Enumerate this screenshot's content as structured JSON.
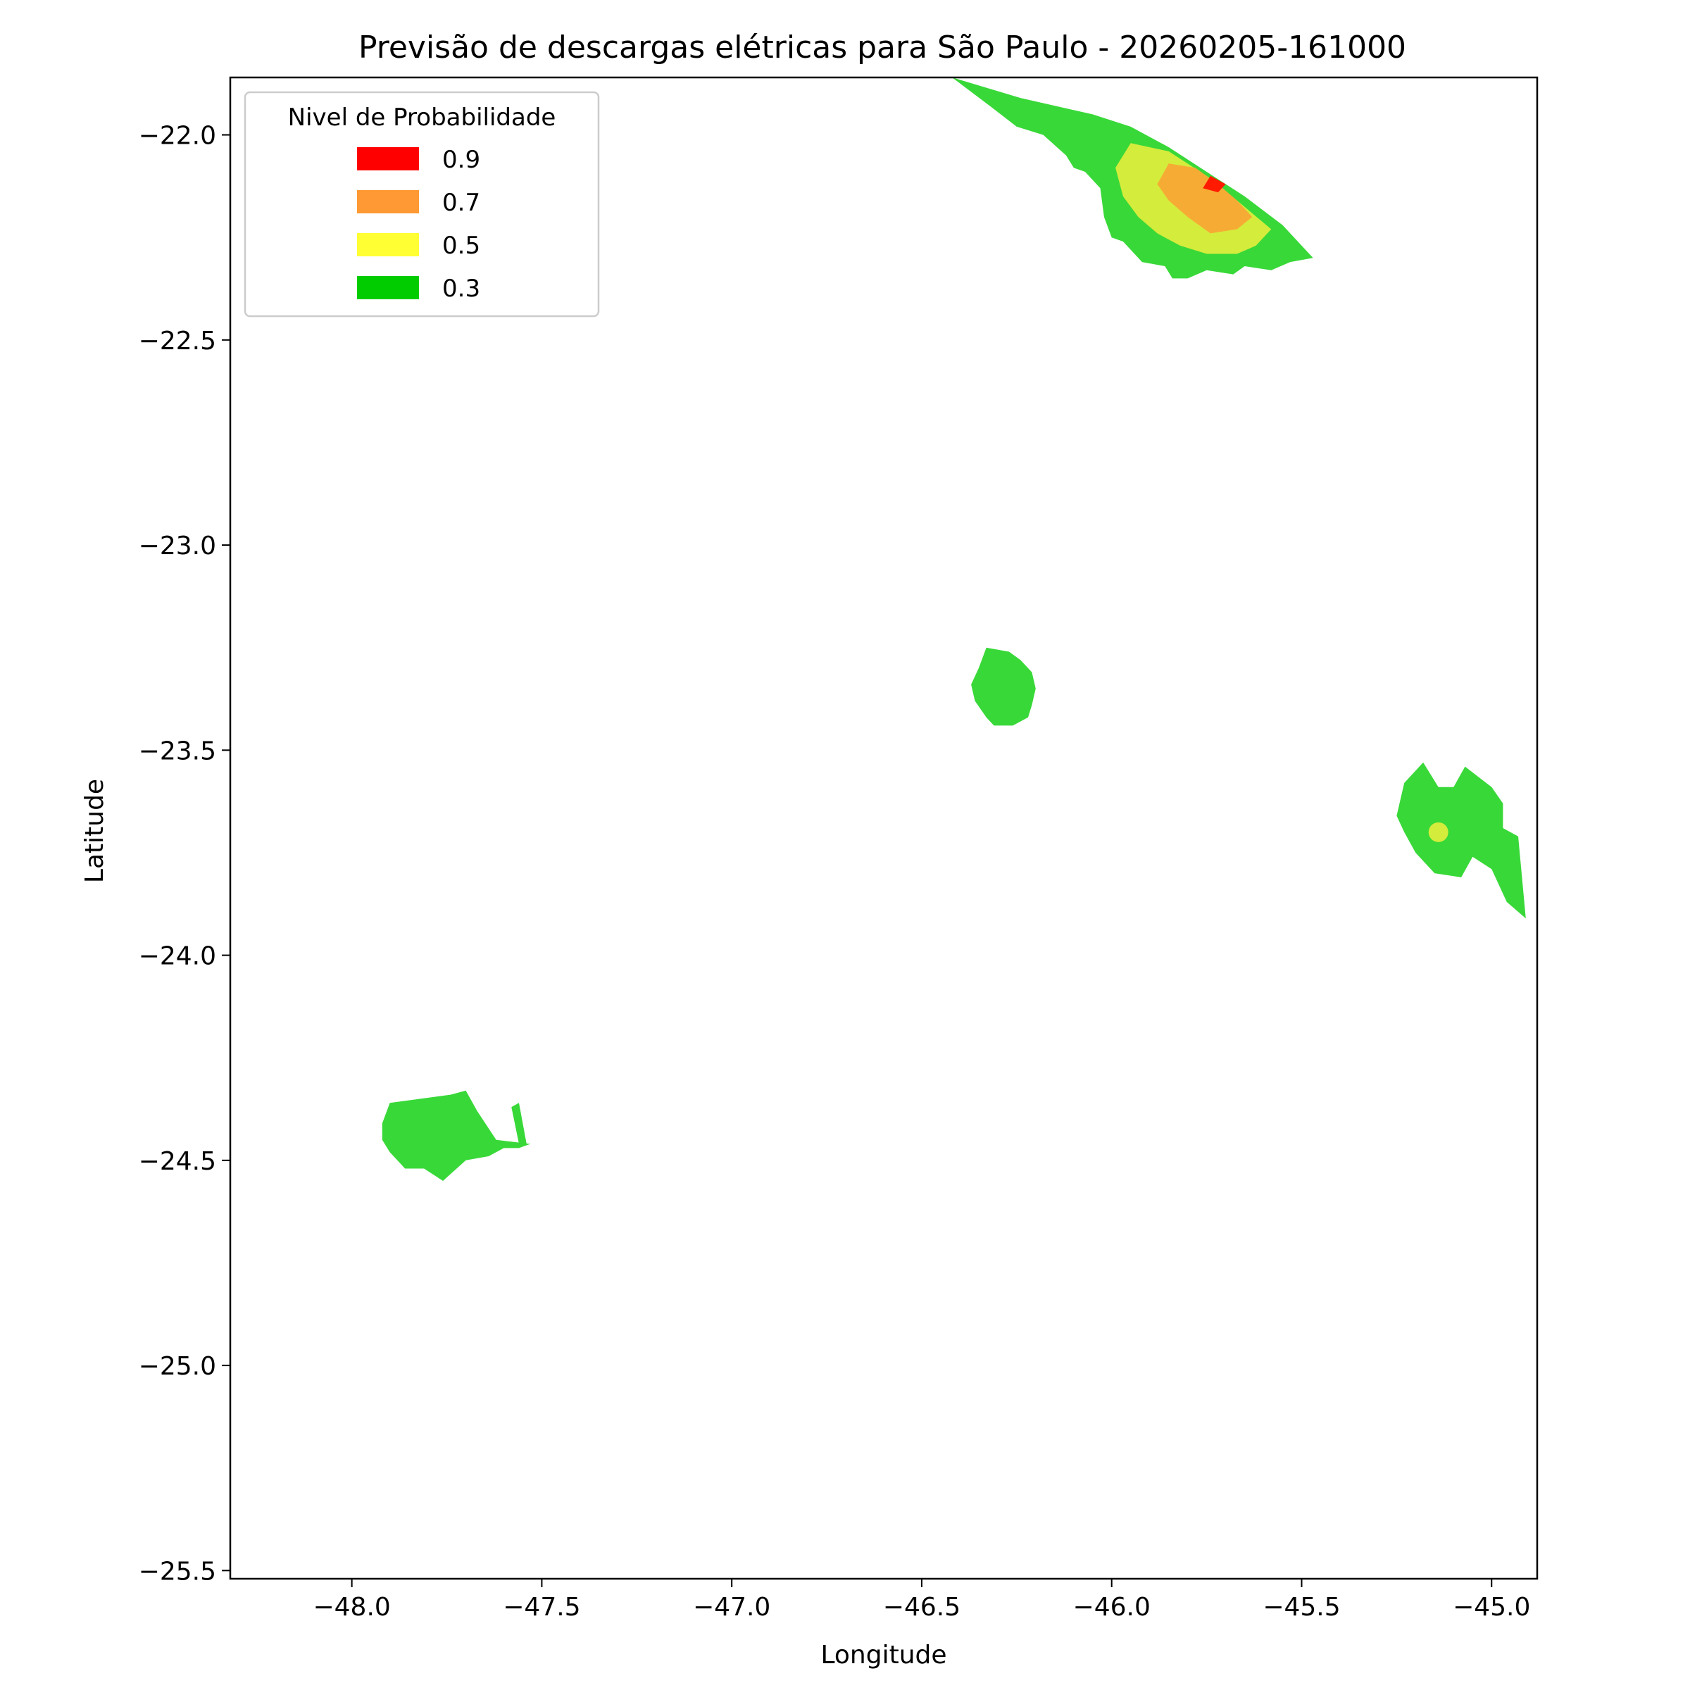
{
  "chart_data": {
    "type": "contour",
    "title": "Previsão de descargas elétricas para São Paulo - 20260205-161000",
    "xlabel": "Longitude",
    "ylabel": "Latitude",
    "xlim": [
      -48.32,
      -44.88
    ],
    "ylim": [
      -25.52,
      -21.86
    ],
    "xticks": [
      -48.0,
      -47.5,
      -47.0,
      -46.5,
      -46.0,
      -45.5,
      -45.0
    ],
    "xtick_labels": [
      "−48.0",
      "−47.5",
      "−47.0",
      "−46.5",
      "−46.0",
      "−45.5",
      "−45.0"
    ],
    "yticks": [
      -22.0,
      -22.5,
      -23.0,
      -23.5,
      -24.0,
      -24.5,
      -25.0,
      -25.5
    ],
    "ytick_labels": [
      "−22.0",
      "−22.5",
      "−23.0",
      "−23.5",
      "−24.0",
      "−24.5",
      "−25.0",
      "−25.5"
    ],
    "grid": false,
    "legend": {
      "title": "Nivel de Probabilidade",
      "placement": "top-left",
      "entries": [
        {
          "label": "0.9",
          "color": "#ff0000"
        },
        {
          "label": "0.7",
          "color": "#ff9933"
        },
        {
          "label": "0.5",
          "color": "#ffff33"
        },
        {
          "label": "0.3",
          "color": "#00cc00"
        }
      ]
    },
    "series": [
      {
        "level": 0.3,
        "color": "#38d838",
        "regions": [
          [
            [
              -46.42,
              -21.86
            ],
            [
              -46.24,
              -21.91
            ],
            [
              -46.05,
              -21.95
            ],
            [
              -45.95,
              -21.98
            ],
            [
              -45.85,
              -22.03
            ],
            [
              -45.75,
              -22.09
            ],
            [
              -45.65,
              -22.15
            ],
            [
              -45.55,
              -22.22
            ],
            [
              -45.47,
              -22.3
            ],
            [
              -45.53,
              -22.31
            ],
            [
              -45.58,
              -22.33
            ],
            [
              -45.65,
              -22.32
            ],
            [
              -45.68,
              -22.34
            ],
            [
              -45.75,
              -22.33
            ],
            [
              -45.8,
              -22.35
            ],
            [
              -45.84,
              -22.35
            ],
            [
              -45.86,
              -22.32
            ],
            [
              -45.92,
              -22.31
            ],
            [
              -45.97,
              -22.26
            ],
            [
              -46.0,
              -22.25
            ],
            [
              -46.02,
              -22.2
            ],
            [
              -46.03,
              -22.13
            ],
            [
              -46.07,
              -22.09
            ],
            [
              -46.1,
              -22.08
            ],
            [
              -46.12,
              -22.05
            ],
            [
              -46.18,
              -22.0
            ],
            [
              -46.25,
              -21.98
            ],
            [
              -46.32,
              -21.93
            ]
          ],
          [
            [
              -46.35,
              -23.3
            ],
            [
              -46.33,
              -23.25
            ],
            [
              -46.27,
              -23.26
            ],
            [
              -46.24,
              -23.28
            ],
            [
              -46.21,
              -23.31
            ],
            [
              -46.2,
              -23.35
            ],
            [
              -46.21,
              -23.39
            ],
            [
              -46.22,
              -23.42
            ],
            [
              -46.26,
              -23.44
            ],
            [
              -46.31,
              -23.44
            ],
            [
              -46.33,
              -23.42
            ],
            [
              -46.36,
              -23.38
            ],
            [
              -46.37,
              -23.34
            ]
          ],
          [
            [
              -45.23,
              -23.58
            ],
            [
              -45.18,
              -23.53
            ],
            [
              -45.14,
              -23.59
            ],
            [
              -45.1,
              -23.59
            ],
            [
              -45.07,
              -23.54
            ],
            [
              -45.0,
              -23.59
            ],
            [
              -44.97,
              -23.63
            ],
            [
              -44.97,
              -23.69
            ],
            [
              -44.93,
              -23.71
            ],
            [
              -44.91,
              -23.91
            ],
            [
              -44.96,
              -23.87
            ],
            [
              -45.0,
              -23.79
            ],
            [
              -45.05,
              -23.76
            ],
            [
              -45.08,
              -23.81
            ],
            [
              -45.15,
              -23.8
            ],
            [
              -45.2,
              -23.75
            ],
            [
              -45.23,
              -23.7
            ],
            [
              -45.25,
              -23.66
            ]
          ],
          [
            [
              -47.9,
              -24.36
            ],
            [
              -47.74,
              -24.34
            ],
            [
              -47.7,
              -24.33
            ],
            [
              -47.67,
              -24.38
            ],
            [
              -47.62,
              -24.45
            ],
            [
              -47.53,
              -24.46
            ],
            [
              -47.56,
              -24.47
            ],
            [
              -47.6,
              -24.47
            ],
            [
              -47.64,
              -24.49
            ],
            [
              -47.7,
              -24.5
            ],
            [
              -47.76,
              -24.55
            ],
            [
              -47.81,
              -24.52
            ],
            [
              -47.86,
              -24.52
            ],
            [
              -47.9,
              -24.48
            ],
            [
              -47.92,
              -24.45
            ],
            [
              -47.92,
              -24.41
            ]
          ],
          [
            [
              -47.58,
              -24.37
            ],
            [
              -47.56,
              -24.36
            ],
            [
              -47.54,
              -24.46
            ],
            [
              -47.56,
              -24.46
            ]
          ]
        ]
      },
      {
        "level": 0.5,
        "color": "#d4ec3c",
        "regions": [
          [
            [
              -45.95,
              -22.02
            ],
            [
              -45.85,
              -22.04
            ],
            [
              -45.75,
              -22.1
            ],
            [
              -45.67,
              -22.16
            ],
            [
              -45.58,
              -22.23
            ],
            [
              -45.62,
              -22.27
            ],
            [
              -45.67,
              -22.29
            ],
            [
              -45.75,
              -22.29
            ],
            [
              -45.82,
              -22.27
            ],
            [
              -45.88,
              -22.24
            ],
            [
              -45.93,
              -22.2
            ],
            [
              -45.97,
              -22.15
            ],
            [
              -45.99,
              -22.08
            ]
          ]
        ]
      },
      {
        "level": 0.7,
        "color": "#f6ac34",
        "regions": [
          [
            [
              -45.85,
              -22.07
            ],
            [
              -45.78,
              -22.08
            ],
            [
              -45.72,
              -22.12
            ],
            [
              -45.67,
              -22.16
            ],
            [
              -45.63,
              -22.2
            ],
            [
              -45.67,
              -22.23
            ],
            [
              -45.74,
              -22.24
            ],
            [
              -45.8,
              -22.2
            ],
            [
              -45.85,
              -22.16
            ],
            [
              -45.88,
              -22.12
            ]
          ]
        ]
      },
      {
        "level": 0.9,
        "color": "#ff1a00",
        "regions": [
          [
            [
              -45.74,
              -22.1
            ],
            [
              -45.7,
              -22.12
            ],
            [
              -45.72,
              -22.14
            ],
            [
              -45.76,
              -22.13
            ]
          ]
        ]
      }
    ],
    "points": [
      {
        "x": -45.14,
        "y": -23.7,
        "level": 0.5,
        "color": "#d4ec3c"
      }
    ]
  }
}
